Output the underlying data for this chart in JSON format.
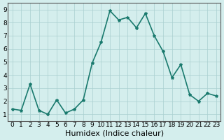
{
  "x": [
    0,
    1,
    2,
    3,
    4,
    5,
    6,
    7,
    8,
    9,
    10,
    11,
    12,
    13,
    14,
    15,
    16,
    17,
    18,
    19,
    20,
    21,
    22,
    23
  ],
  "y": [
    1.4,
    1.3,
    3.3,
    1.3,
    1.0,
    2.1,
    1.1,
    1.4,
    2.1,
    4.9,
    6.5,
    8.9,
    8.2,
    8.4,
    7.6,
    8.7,
    7.0,
    5.8,
    3.8,
    4.8,
    2.5,
    2.0,
    2.6,
    2.4
  ],
  "xlabel": "Humidex (Indice chaleur)",
  "ylim": [
    0.5,
    9.5
  ],
  "xlim": [
    -0.5,
    23.5
  ],
  "yticks": [
    1,
    2,
    3,
    4,
    5,
    6,
    7,
    8,
    9
  ],
  "xticks": [
    0,
    1,
    2,
    3,
    4,
    5,
    6,
    7,
    8,
    9,
    10,
    11,
    12,
    13,
    14,
    15,
    16,
    17,
    18,
    19,
    20,
    21,
    22,
    23
  ],
  "line_color": "#1a7a6e",
  "marker": "*",
  "bg_color": "#d4eeed",
  "grid_color": "#aacfcf",
  "tick_label_fontsize": 6.5,
  "xlabel_fontsize": 8,
  "linewidth": 1.2
}
